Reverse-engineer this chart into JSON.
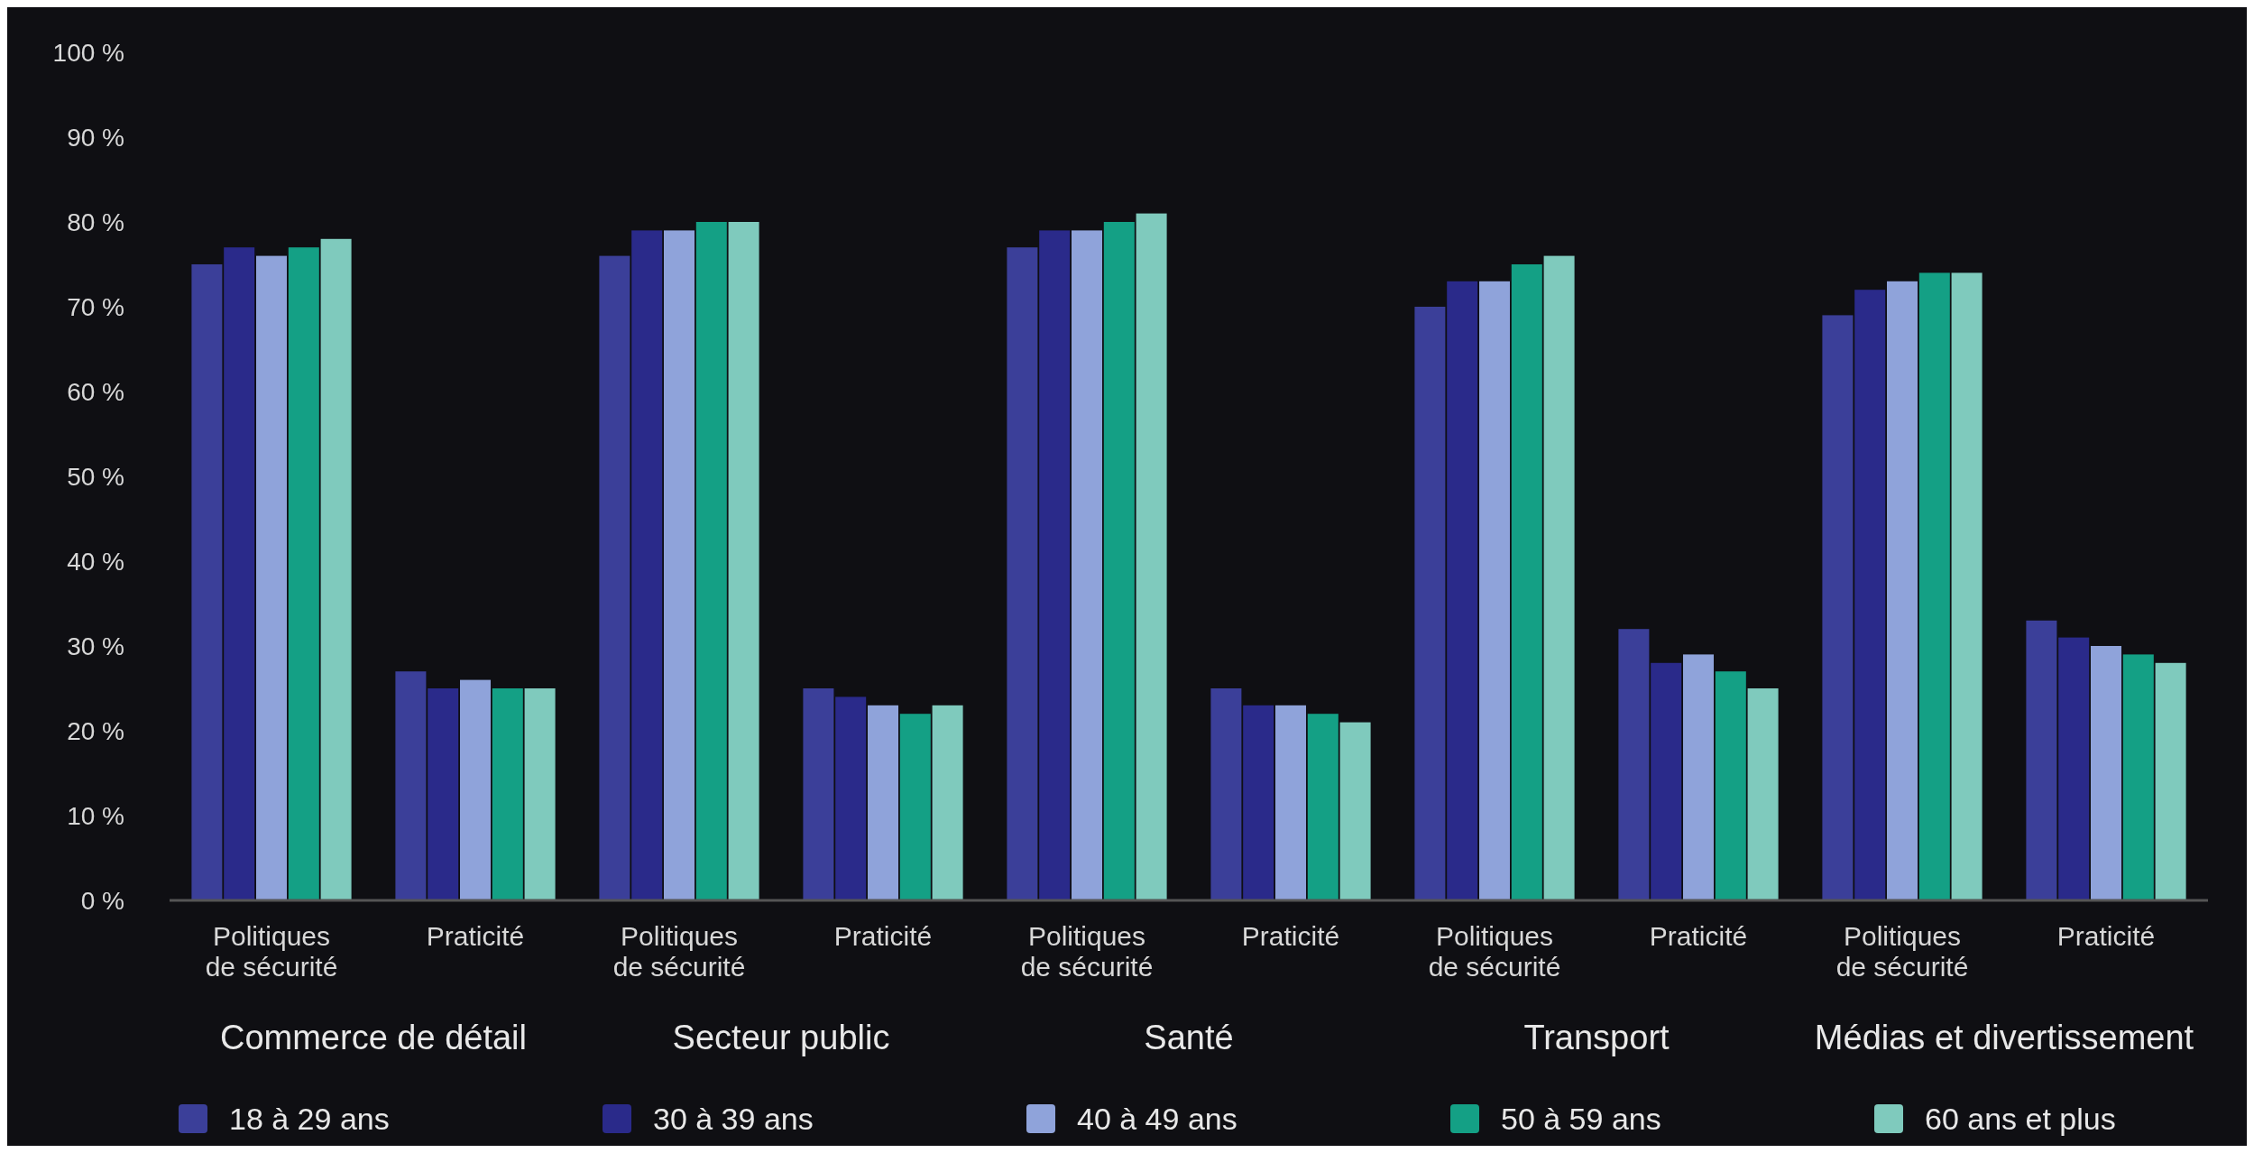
{
  "chart_data": {
    "type": "bar",
    "categories": [
      "Politiques de sécurité",
      "Praticité",
      "Politiques de sécurité",
      "Praticité",
      "Politiques de sécurité",
      "Praticité",
      "Politiques de sécurité",
      "Praticité",
      "Politiques de sécurité",
      "Praticité"
    ],
    "annotations": [
      "Commerce de détail",
      "Secteur public",
      "Santé",
      "Transport",
      "Médias et divertissement"
    ],
    "series": [
      {
        "name": "18 à 29 ans",
        "color": "#3b3f99",
        "values": [
          75,
          27,
          76,
          25,
          77,
          25,
          70,
          32,
          69,
          33
        ]
      },
      {
        "name": "30 à 39 ans",
        "color": "#2a2a8a",
        "values": [
          77,
          25,
          79,
          24,
          79,
          23,
          73,
          28,
          72,
          31
        ]
      },
      {
        "name": "40 à 49 ans",
        "color": "#8fa3da",
        "values": [
          76,
          26,
          79,
          23,
          79,
          23,
          73,
          29,
          73,
          30
        ]
      },
      {
        "name": "50 à 59 ans",
        "color": "#14a085",
        "values": [
          77,
          25,
          80,
          22,
          80,
          22,
          75,
          27,
          74,
          29
        ]
      },
      {
        "name": "60 ans et plus",
        "color": "#7fcabd",
        "values": [
          78,
          25,
          80,
          23,
          81,
          21,
          76,
          25,
          74,
          28
        ]
      }
    ],
    "ylim": [
      0,
      100
    ],
    "yticks": [
      {
        "value": 0,
        "label": "0 %"
      },
      {
        "value": 10,
        "label": "10 %"
      },
      {
        "value": 20,
        "label": "20 %"
      },
      {
        "value": 30,
        "label": "30 %"
      },
      {
        "value": 40,
        "label": "40 %"
      },
      {
        "value": 50,
        "label": "50 %"
      },
      {
        "value": 60,
        "label": "60 %"
      },
      {
        "value": 70,
        "label": "70 %"
      },
      {
        "value": 80,
        "label": "80 %"
      },
      {
        "value": 90,
        "label": "90 %"
      },
      {
        "value": 100,
        "label": "100 %"
      }
    ],
    "legend": "bottom"
  }
}
